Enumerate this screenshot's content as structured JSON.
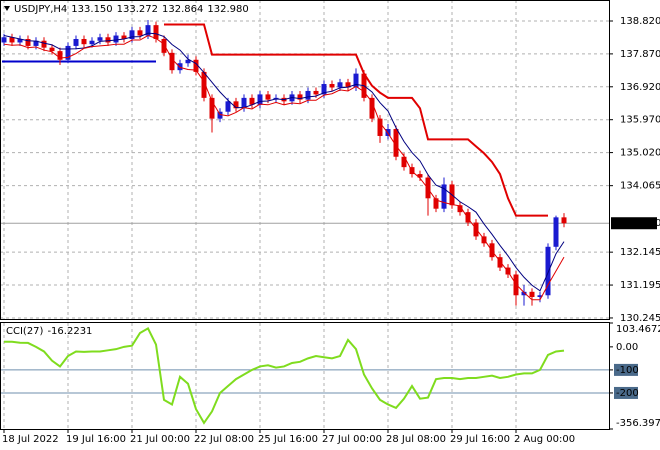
{
  "chart_data": {
    "type": "candlestick",
    "title": "USDJPY,H4",
    "ohlc_labels": [
      "133.150",
      "133.272",
      "132.864",
      "132.980"
    ],
    "categories": [
      "18 Jul 2022",
      null,
      null,
      null,
      null,
      null,
      null,
      null,
      "19 Jul 16:00",
      null,
      null,
      null,
      null,
      null,
      null,
      null,
      "21 Jul 00:00",
      null,
      null,
      null,
      null,
      null,
      null,
      null,
      "22 Jul 08:00",
      null,
      null,
      null,
      null,
      null,
      null,
      null,
      "25 Jul 16:00",
      null,
      null,
      null,
      null,
      null,
      null,
      null,
      "27 Jul 00:00",
      null,
      null,
      null,
      null,
      null,
      null,
      null,
      "28 Jul 08:00",
      null,
      null,
      null,
      null,
      null,
      null,
      null,
      "29 Jul 16:00",
      null,
      null,
      null,
      null,
      null,
      null,
      null,
      "2 Aug 00:00",
      null,
      null,
      null,
      null,
      null,
      null
    ],
    "candles": [
      [
        138.2,
        138.45,
        138.1,
        138.35
      ],
      [
        138.35,
        138.45,
        138.1,
        138.2
      ],
      [
        138.2,
        138.4,
        138.1,
        138.3
      ],
      [
        138.3,
        138.4,
        138.0,
        138.1
      ],
      [
        138.1,
        138.35,
        138.0,
        138.25
      ],
      [
        138.25,
        138.35,
        137.95,
        138.05
      ],
      [
        138.05,
        138.15,
        137.85,
        137.95
      ],
      [
        137.95,
        138.05,
        137.55,
        137.7
      ],
      [
        137.7,
        138.2,
        137.6,
        138.1
      ],
      [
        138.1,
        138.4,
        138.0,
        138.3
      ],
      [
        138.3,
        138.4,
        138.05,
        138.15
      ],
      [
        138.15,
        138.35,
        138.05,
        138.25
      ],
      [
        138.25,
        138.45,
        138.15,
        138.35
      ],
      [
        138.35,
        138.45,
        138.1,
        138.2
      ],
      [
        138.2,
        138.5,
        138.1,
        138.4
      ],
      [
        138.4,
        138.5,
        138.2,
        138.3
      ],
      [
        138.3,
        138.65,
        138.2,
        138.55
      ],
      [
        138.55,
        138.65,
        138.3,
        138.4
      ],
      [
        138.4,
        138.85,
        138.3,
        138.7
      ],
      [
        138.7,
        138.8,
        138.2,
        138.3
      ],
      [
        138.3,
        138.4,
        137.8,
        137.9
      ],
      [
        137.9,
        138.0,
        137.3,
        137.4
      ],
      [
        137.4,
        137.7,
        137.3,
        137.6
      ],
      [
        137.6,
        137.85,
        137.5,
        137.7
      ],
      [
        137.7,
        137.8,
        137.25,
        137.35
      ],
      [
        137.35,
        137.45,
        136.5,
        136.6
      ],
      [
        136.6,
        136.7,
        135.6,
        136.0
      ],
      [
        136.0,
        136.3,
        135.9,
        136.2
      ],
      [
        136.2,
        136.6,
        136.1,
        136.5
      ],
      [
        136.5,
        136.6,
        136.2,
        136.3
      ],
      [
        136.3,
        136.7,
        136.2,
        136.6
      ],
      [
        136.6,
        136.7,
        136.3,
        136.4
      ],
      [
        136.4,
        136.8,
        136.3,
        136.7
      ],
      [
        136.7,
        136.8,
        136.45,
        136.55
      ],
      [
        136.55,
        136.7,
        136.45,
        136.6
      ],
      [
        136.6,
        136.7,
        136.4,
        136.5
      ],
      [
        136.5,
        136.8,
        136.4,
        136.7
      ],
      [
        136.7,
        136.8,
        136.45,
        136.55
      ],
      [
        136.55,
        136.9,
        136.45,
        136.8
      ],
      [
        136.8,
        136.9,
        136.6,
        136.7
      ],
      [
        136.7,
        137.1,
        136.6,
        137.0
      ],
      [
        137.0,
        137.1,
        136.8,
        136.9
      ],
      [
        136.9,
        137.15,
        136.8,
        137.05
      ],
      [
        137.05,
        137.15,
        136.8,
        136.9
      ],
      [
        136.9,
        137.45,
        136.8,
        137.3
      ],
      [
        137.3,
        137.4,
        136.5,
        136.6
      ],
      [
        136.6,
        136.7,
        135.9,
        136.0
      ],
      [
        136.0,
        136.1,
        135.3,
        135.5
      ],
      [
        135.5,
        135.85,
        135.4,
        135.7
      ],
      [
        135.7,
        135.8,
        134.8,
        134.9
      ],
      [
        134.9,
        135.0,
        134.5,
        134.6
      ],
      [
        134.6,
        134.7,
        134.3,
        134.4
      ],
      [
        134.4,
        134.5,
        134.2,
        134.3
      ],
      [
        134.3,
        134.4,
        133.2,
        133.7
      ],
      [
        133.7,
        133.8,
        133.3,
        133.4
      ],
      [
        133.4,
        134.3,
        133.3,
        134.1
      ],
      [
        134.1,
        134.2,
        133.4,
        133.5
      ],
      [
        133.5,
        133.6,
        133.2,
        133.3
      ],
      [
        133.3,
        133.4,
        132.9,
        133.0
      ],
      [
        133.0,
        133.1,
        132.5,
        132.6
      ],
      [
        132.6,
        132.7,
        132.3,
        132.4
      ],
      [
        132.4,
        132.5,
        131.9,
        132.0
      ],
      [
        132.0,
        132.1,
        131.6,
        131.7
      ],
      [
        131.7,
        131.8,
        131.4,
        131.5
      ],
      [
        131.5,
        131.6,
        130.6,
        130.9
      ],
      [
        130.9,
        131.2,
        130.6,
        131.0
      ],
      [
        131.0,
        131.1,
        130.6,
        130.85
      ],
      [
        130.85,
        131.0,
        130.7,
        130.9
      ],
      [
        130.9,
        132.4,
        130.8,
        132.3
      ],
      [
        132.3,
        133.2,
        132.2,
        133.15
      ],
      [
        133.15,
        133.272,
        132.864,
        132.98
      ]
    ],
    "colors": {
      "up": "#1a1ad0",
      "down": "#e00000"
    },
    "lines": [
      {
        "color": "#000080",
        "width": 1,
        "values": [
          138.4,
          138.35,
          138.3,
          138.25,
          138.24,
          138.18,
          138.13,
          138.01,
          138.01,
          138.02,
          138.04,
          138.1,
          138.23,
          138.25,
          138.27,
          138.3,
          138.36,
          138.37,
          138.47,
          138.45,
          138.37,
          138.14,
          137.98,
          137.72,
          137.59,
          137.33,
          137.05,
          136.77,
          136.53,
          136.32,
          136.32,
          136.4,
          136.5,
          136.51,
          136.57,
          136.55,
          136.61,
          136.58,
          136.63,
          136.65,
          136.75,
          136.79,
          136.89,
          136.91,
          136.99,
          136.95,
          136.77,
          136.46,
          136.22,
          135.74,
          135.34,
          135.02,
          134.78,
          134.38,
          134.08,
          133.98,
          133.8,
          133.6,
          133.46,
          133.3,
          132.96,
          132.66,
          132.34,
          132.04,
          131.7,
          131.42,
          131.19,
          131.03,
          131.55,
          132.1,
          132.45
        ]
      },
      {
        "color": "#e00000",
        "width": 1,
        "values": [
          138.15,
          138.12,
          138.13,
          138.05,
          138.07,
          137.98,
          137.93,
          137.75,
          137.77,
          137.88,
          138.03,
          138.08,
          138.1,
          138.12,
          138.15,
          138.15,
          138.27,
          138.27,
          138.4,
          138.32,
          138.15,
          137.72,
          137.48,
          137.42,
          137.4,
          137.07,
          136.5,
          136.12,
          136.08,
          136.18,
          136.32,
          136.28,
          136.42,
          136.4,
          136.47,
          136.4,
          136.45,
          136.43,
          136.53,
          136.53,
          136.68,
          136.72,
          136.83,
          136.8,
          136.93,
          136.78,
          136.48,
          135.88,
          135.58,
          135.22,
          134.92,
          134.48,
          134.28,
          133.98,
          133.65,
          133.58,
          133.52,
          133.48,
          133.12,
          132.82,
          132.52,
          132.18,
          131.88,
          131.58,
          131.22,
          130.98,
          130.77,
          130.77,
          131.2,
          131.6,
          132.0
        ]
      },
      {
        "color": "#e00000",
        "width": 2,
        "values": [
          null,
          null,
          null,
          null,
          null,
          null,
          null,
          null,
          null,
          null,
          null,
          null,
          null,
          null,
          null,
          null,
          null,
          null,
          null,
          null,
          138.72,
          138.72,
          138.72,
          138.72,
          138.72,
          138.72,
          137.85,
          137.85,
          137.85,
          137.85,
          137.85,
          137.85,
          137.85,
          137.85,
          137.85,
          137.85,
          137.85,
          137.85,
          137.85,
          137.85,
          137.85,
          137.85,
          137.85,
          137.85,
          137.85,
          137.3,
          136.95,
          136.75,
          136.6,
          136.6,
          136.6,
          136.6,
          136.3,
          135.4,
          135.4,
          135.4,
          135.4,
          135.4,
          135.4,
          135.2,
          135.0,
          134.75,
          134.4,
          133.7,
          133.2,
          133.2,
          133.2,
          133.2,
          133.2,
          null,
          null
        ]
      }
    ],
    "level": {
      "value": 137.65,
      "color": "#0000cc"
    },
    "ylim": [
      130.186,
      139.426
    ],
    "yticks": [
      {
        "value": 138.82,
        "label": "138.820"
      },
      {
        "value": 137.87,
        "label": "137.870"
      },
      {
        "value": 136.92,
        "label": "136.920"
      },
      {
        "value": 135.97,
        "label": "135.970"
      },
      {
        "value": 135.02,
        "label": "135.020"
      },
      134.065,
      132.145,
      131.195,
      130.245
    ],
    "grid": true,
    "cci": {
      "title": "CCI(27)",
      "color": "#7fdc1e",
      "values": [
        22,
        22,
        18,
        17,
        0,
        -20,
        -60,
        -85,
        -40,
        -20,
        -22,
        -20,
        -20,
        -15,
        -10,
        0,
        5,
        60,
        80,
        10,
        -230,
        -250,
        -130,
        -160,
        -270,
        -330,
        -280,
        -200,
        -170,
        -140,
        -120,
        -100,
        -85,
        -80,
        -90,
        -85,
        -70,
        -65,
        -50,
        -40,
        -45,
        -50,
        -40,
        30,
        -10,
        -120,
        -180,
        -230,
        -250,
        -265,
        -225,
        -170,
        -225,
        -220,
        -140,
        -135,
        -135,
        -140,
        -135,
        -135,
        -130,
        -125,
        -135,
        -130,
        -120,
        -115,
        -115,
        -100,
        -35,
        -20,
        -16.2231
      ],
      "ylim": [
        -356.397,
        103.4672
      ],
      "yticks": [
        103.4672,
        {
          "value": 0,
          "label": "0.00"
        },
        -100,
        -200,
        -356.397
      ],
      "levels": [
        -100,
        -200
      ]
    }
  }
}
